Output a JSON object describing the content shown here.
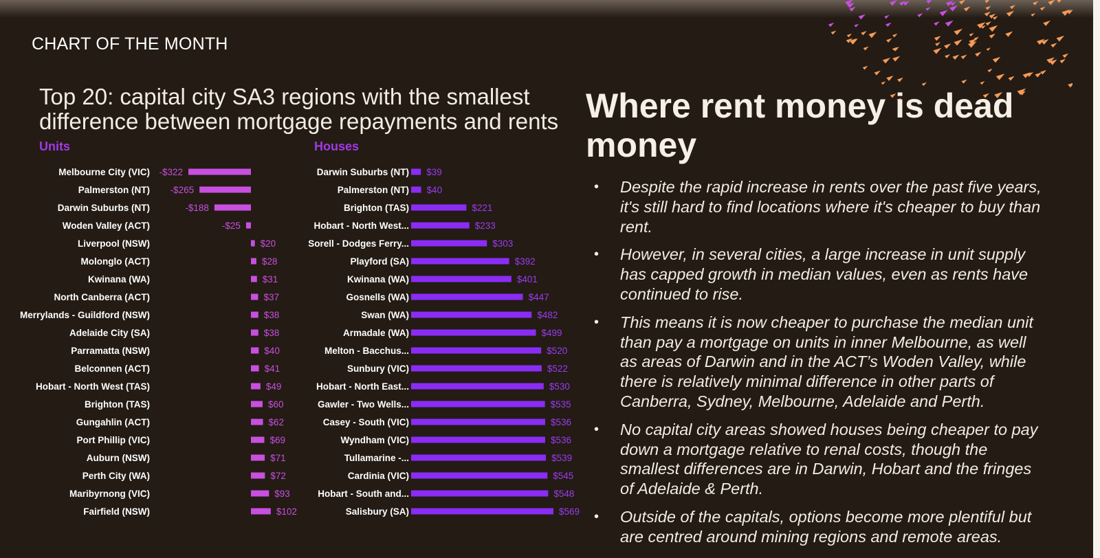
{
  "kicker": "CHART OF THE MONTH",
  "chart_title": "Top 20: capital city SA3 regions with the smallest difference between mortgage repayments and rents",
  "headline": "Where rent money is dead money",
  "bullets": [
    "Despite the rapid increase in rents over the past five years, it's still hard to find locations where it's cheaper to buy than rent.",
    "However, in several cities, a large increase in unit supply has capped growth in median values, even as rents have continued to rise.",
    "This means it is now cheaper to purchase the median unit than pay a mortgage on units in inner Melbourne, as well as areas of Darwin and in the ACT’s Woden Valley, while there is relatively minimal difference in other parts of Canberra, Sydney, Melbourne, Adelaide and Perth.",
    "No capital city areas showed houses being cheaper to pay down a mortgage relative to renal costs, though the smallest differences are in Darwin, Hobart and the fringes of Adelaide & Perth.",
    "Outside of the capitals, options become more plentiful but are centred around mining regions and remote areas."
  ],
  "bullet_symbol": "•",
  "colors": {
    "background": "#231b14",
    "units_bar": "#c94fe0",
    "houses_bar": "#8b2cf5",
    "panel_label": "#a239e6",
    "deco_orange": "#f59a56",
    "deco_magenta": "#c94fe0"
  },
  "chart_data": [
    {
      "type": "bar",
      "orientation": "horizontal",
      "title": "Units",
      "value_prefix": "$",
      "categories": [
        "Melbourne City (VIC)",
        "Palmerston (NT)",
        "Darwin Suburbs (NT)",
        "Woden Valley (ACT)",
        "Liverpool (NSW)",
        "Molonglo (ACT)",
        "Kwinana (WA)",
        "North Canberra (ACT)",
        "Merrylands - Guildford (NSW)",
        "Adelaide City (SA)",
        "Parramatta (NSW)",
        "Belconnen (ACT)",
        "Hobart - North West (TAS)",
        "Brighton (TAS)",
        "Gungahlin (ACT)",
        "Port Phillip (VIC)",
        "Auburn (NSW)",
        "Perth City (WA)",
        "Maribyrnong (VIC)",
        "Fairfield (NSW)"
      ],
      "values": [
        -322,
        -265,
        -188,
        -25,
        20,
        28,
        31,
        37,
        38,
        38,
        40,
        41,
        49,
        60,
        62,
        69,
        71,
        72,
        93,
        102
      ],
      "value_labels": [
        "-$322",
        "-$265",
        "-$188",
        "-$25",
        "$20",
        "$28",
        "$31",
        "$37",
        "$38",
        "$38",
        "$40",
        "$41",
        "$49",
        "$60",
        "$62",
        "$69",
        "$71",
        "$72",
        "$93",
        "$102"
      ]
    },
    {
      "type": "bar",
      "orientation": "horizontal",
      "title": "Houses",
      "value_prefix": "$",
      "categories": [
        "Darwin Suburbs (NT)",
        "Palmerston (NT)",
        "Brighton (TAS)",
        "Hobart - North West...",
        "Sorell - Dodges Ferry...",
        "Playford (SA)",
        "Kwinana (WA)",
        "Gosnells (WA)",
        "Swan (WA)",
        "Armadale (WA)",
        "Melton - Bacchus...",
        "Sunbury (VIC)",
        "Hobart - North East...",
        "Gawler - Two Wells...",
        "Casey - South (VIC)",
        "Wyndham (VIC)",
        "Tullamarine -...",
        "Cardinia (VIC)",
        "Hobart - South and...",
        "Salisbury (SA)"
      ],
      "values": [
        39,
        40,
        221,
        233,
        303,
        392,
        401,
        447,
        482,
        499,
        520,
        522,
        530,
        535,
        536,
        536,
        539,
        545,
        548,
        569
      ],
      "value_labels": [
        "$39",
        "$40",
        "$221",
        "$233",
        "$303",
        "$392",
        "$401",
        "$447",
        "$482",
        "$499",
        "$520",
        "$522",
        "$530",
        "$535",
        "$536",
        "$536",
        "$539",
        "$545",
        "$548",
        "$569"
      ]
    }
  ]
}
